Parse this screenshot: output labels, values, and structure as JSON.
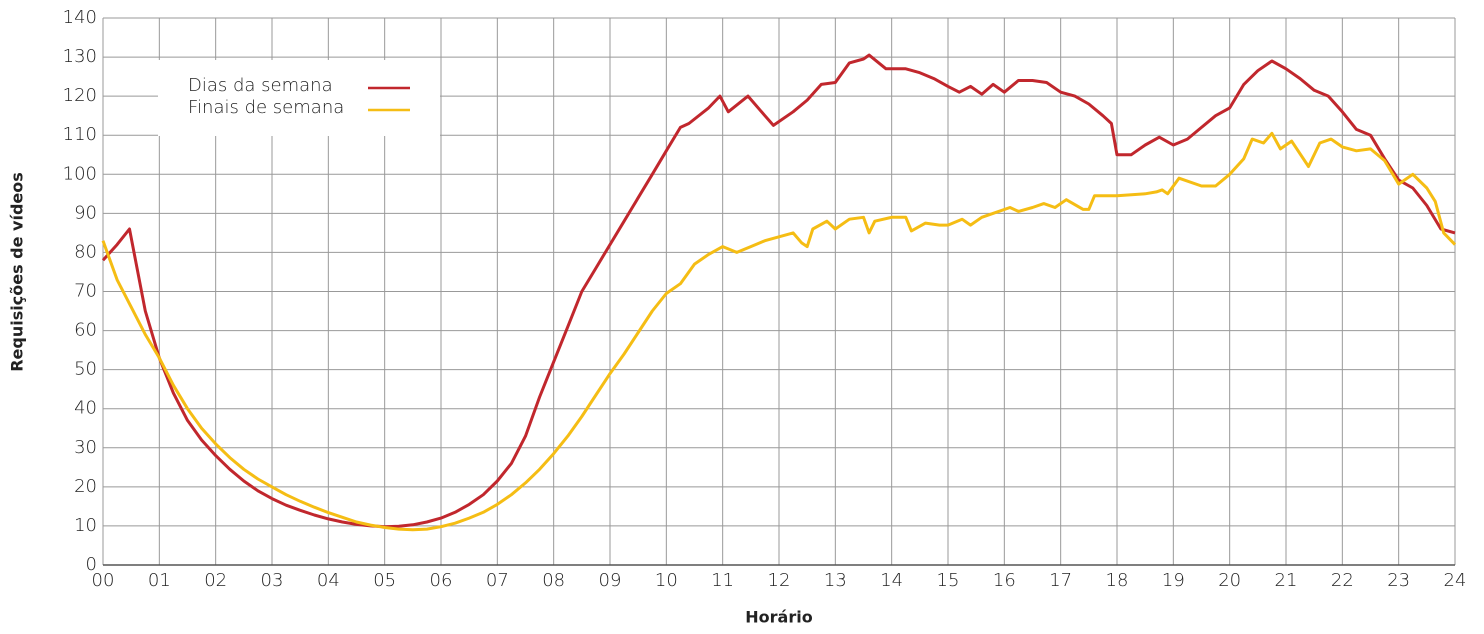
{
  "chart_data": {
    "type": "line",
    "xlabel": "Horário",
    "ylabel": "Requisições de vídeos",
    "xlim": [
      0,
      24
    ],
    "ylim": [
      0,
      140
    ],
    "xticks": [
      {
        "value": 0,
        "label": "00"
      },
      {
        "value": 1,
        "label": "01"
      },
      {
        "value": 2,
        "label": "02"
      },
      {
        "value": 3,
        "label": "03"
      },
      {
        "value": 4,
        "label": "04"
      },
      {
        "value": 5,
        "label": "05"
      },
      {
        "value": 6,
        "label": "06"
      },
      {
        "value": 7,
        "label": "07"
      },
      {
        "value": 8,
        "label": "08"
      },
      {
        "value": 9,
        "label": "09"
      },
      10,
      11,
      12,
      13,
      14,
      15,
      16,
      17,
      18,
      19,
      20,
      21,
      22,
      23,
      24
    ],
    "yticks": [
      0,
      10,
      20,
      30,
      40,
      50,
      60,
      70,
      80,
      90,
      100,
      110,
      120,
      130,
      140
    ],
    "grid": true,
    "legend": "upper left",
    "series": [
      {
        "name": "Dias da semana",
        "color": "#c1272d",
        "x": [
          0,
          0.25,
          0.47,
          0.75,
          1,
          1.25,
          1.5,
          1.75,
          2,
          2.25,
          2.5,
          2.75,
          3,
          3.25,
          3.5,
          3.75,
          4,
          4.25,
          4.5,
          4.75,
          5,
          5.25,
          5.5,
          5.75,
          6,
          6.25,
          6.5,
          6.75,
          7,
          7.25,
          7.5,
          7.75,
          8,
          8.25,
          8.5,
          8.75,
          9,
          9.25,
          9.5,
          9.75,
          10,
          10.25,
          10.4,
          10.75,
          10.95,
          11.1,
          11.45,
          11.75,
          11.9,
          12.25,
          12.5,
          12.75,
          13,
          13.25,
          13.5,
          13.6,
          13.9,
          14.25,
          14.5,
          14.75,
          15,
          15.2,
          15.4,
          15.6,
          15.8,
          16,
          16.25,
          16.5,
          16.75,
          17,
          17.25,
          17.5,
          17.75,
          17.9,
          18,
          18.25,
          18.5,
          18.75,
          19,
          19.25,
          19.5,
          19.75,
          20,
          20.25,
          20.5,
          20.75,
          21,
          21.25,
          21.5,
          21.75,
          22,
          22.25,
          22.5,
          22.75,
          23,
          23.25,
          23.5,
          23.75,
          24
        ],
        "values": [
          78,
          82,
          86,
          65,
          53,
          44,
          37,
          32,
          28,
          24.5,
          21.5,
          19,
          17,
          15.3,
          14,
          12.8,
          11.8,
          11,
          10.4,
          10,
          9.8,
          9.9,
          10.3,
          11,
          12,
          13.5,
          15.5,
          18,
          21.5,
          26,
          33,
          43,
          52,
          61,
          70,
          76,
          82,
          88,
          94,
          100,
          106,
          112,
          113,
          117,
          120,
          116,
          120,
          115,
          112.5,
          116,
          119,
          123,
          123.5,
          128.5,
          129.5,
          130.5,
          127,
          127,
          126,
          124.5,
          122.5,
          121,
          122.5,
          120.5,
          123,
          121,
          124,
          124,
          123.5,
          121,
          120,
          118,
          115,
          113,
          105,
          105,
          107.5,
          109.5,
          107.5,
          109,
          112,
          115,
          117,
          123,
          126.5,
          129,
          127,
          124.5,
          121.5,
          120,
          116,
          111.5,
          110,
          104,
          98.5,
          96.5,
          92,
          86,
          85
        ]
      },
      {
        "name": "Finais de semana",
        "color": "#f5bd14",
        "x": [
          0,
          0.25,
          0.5,
          0.75,
          1,
          1.25,
          1.5,
          1.75,
          2,
          2.25,
          2.5,
          2.75,
          3,
          3.25,
          3.5,
          3.75,
          4,
          4.25,
          4.5,
          4.75,
          5,
          5.25,
          5.5,
          5.75,
          6,
          6.25,
          6.5,
          6.75,
          7,
          7.25,
          7.5,
          7.75,
          8,
          8.25,
          8.5,
          8.75,
          9,
          9.25,
          9.5,
          9.75,
          10,
          10.25,
          10.5,
          10.75,
          11,
          11.25,
          11.5,
          11.75,
          12,
          12.25,
          12.4,
          12.5,
          12.6,
          12.85,
          13,
          13.25,
          13.5,
          13.6,
          13.7,
          14,
          14.25,
          14.35,
          14.6,
          14.85,
          15,
          15.25,
          15.4,
          15.6,
          15.9,
          16.1,
          16.25,
          16.5,
          16.7,
          16.9,
          17.1,
          17.4,
          17.5,
          17.6,
          18,
          18.5,
          18.7,
          18.8,
          18.9,
          19.1,
          19.5,
          19.75,
          20,
          20.25,
          20.4,
          20.6,
          20.75,
          20.9,
          21.1,
          21.4,
          21.6,
          21.8,
          22,
          22.25,
          22.5,
          22.75,
          23,
          23.25,
          23.5,
          23.65,
          23.8,
          24
        ],
        "values": [
          83,
          73,
          66,
          59,
          53,
          46,
          40,
          35,
          31,
          27.5,
          24.5,
          22,
          20,
          18,
          16.3,
          14.8,
          13.4,
          12.2,
          11,
          10.2,
          9.6,
          9.2,
          9,
          9.2,
          9.8,
          10.7,
          12,
          13.5,
          15.5,
          18,
          21,
          24.5,
          28.5,
          33,
          38,
          43.5,
          49,
          54,
          59.5,
          65,
          69.5,
          72,
          77,
          79.5,
          81.5,
          80,
          81.5,
          83,
          84,
          85,
          82.5,
          81.5,
          86,
          88,
          86,
          88.5,
          89,
          85,
          88,
          89,
          89,
          85.5,
          87.5,
          87,
          87,
          88.5,
          87,
          89,
          90.5,
          91.5,
          90.5,
          91.5,
          92.5,
          91.5,
          93.5,
          91,
          91,
          94.5,
          94.5,
          95,
          95.5,
          96,
          95,
          99,
          97,
          97,
          100,
          104,
          109,
          108,
          110.5,
          106.5,
          108.5,
          102,
          108,
          109,
          107,
          106,
          106.5,
          103.5,
          97.5,
          100,
          96.5,
          93,
          85,
          82
        ]
      }
    ]
  }
}
